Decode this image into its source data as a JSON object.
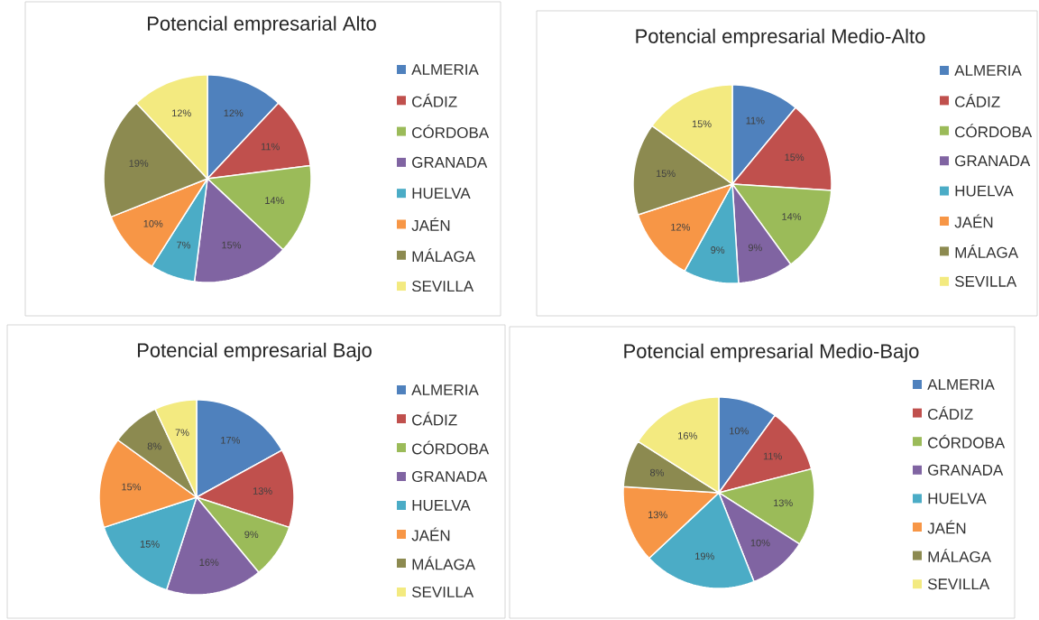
{
  "chart_data": [
    {
      "type": "pie",
      "title": "Potencial empresarial Alto",
      "legend": "right",
      "categories": [
        "ALMERIA",
        "CÁDIZ",
        "CÓRDOBA",
        "GRANADA",
        "HUELVA",
        "JAÉN",
        "MÁLAGA",
        "SEVILLA"
      ],
      "values": [
        12,
        11,
        14,
        15,
        7,
        10,
        19,
        12
      ],
      "value_labels": [
        "12%",
        "11%",
        "14%",
        "15%",
        "7%",
        "10%",
        "19%",
        "12%"
      ],
      "colors": [
        "#4f81bd",
        "#c0504d",
        "#9bbb59",
        "#8064a2",
        "#4bacc6",
        "#f79646",
        "#8c8a50",
        "#f3ea80"
      ]
    },
    {
      "type": "pie",
      "title": "Potencial empresarial Medio-Alto",
      "legend": "right",
      "categories": [
        "ALMERIA",
        "CÁDIZ",
        "CÓRDOBA",
        "GRANADA",
        "HUELVA",
        "JAÉN",
        "MÁLAGA",
        "SEVILLA"
      ],
      "values": [
        11,
        15,
        14,
        9,
        9,
        12,
        15,
        15
      ],
      "value_labels": [
        "11%",
        "15%",
        "14%",
        "9%",
        "9%",
        "12%",
        "15%",
        "15%"
      ],
      "colors": [
        "#4f81bd",
        "#c0504d",
        "#9bbb59",
        "#8064a2",
        "#4bacc6",
        "#f79646",
        "#8c8a50",
        "#f3ea80"
      ]
    },
    {
      "type": "pie",
      "title": "Potencial empresarial Bajo",
      "legend": "right",
      "categories": [
        "ALMERIA",
        "CÁDIZ",
        "CÓRDOBA",
        "GRANADA",
        "HUELVA",
        "JAÉN",
        "MÁLAGA",
        "SEVILLA"
      ],
      "values": [
        17,
        13,
        9,
        16,
        15,
        15,
        8,
        7
      ],
      "value_labels": [
        "17%",
        "13%",
        "9%",
        "16%",
        "15%",
        "15%",
        "8%",
        "7%"
      ],
      "colors": [
        "#4f81bd",
        "#c0504d",
        "#9bbb59",
        "#8064a2",
        "#4bacc6",
        "#f79646",
        "#8c8a50",
        "#f3ea80"
      ]
    },
    {
      "type": "pie",
      "title": "Potencial empresarial Medio-Bajo",
      "legend": "right",
      "categories": [
        "ALMERIA",
        "CÁDIZ",
        "CÓRDOBA",
        "GRANADA",
        "HUELVA",
        "JAÉN",
        "MÁLAGA",
        "SEVILLA"
      ],
      "values": [
        10,
        11,
        13,
        10,
        19,
        13,
        8,
        16
      ],
      "value_labels": [
        "10%",
        "11%",
        "13%",
        "10%",
        "19%",
        "13%",
        "8%",
        "16%"
      ],
      "colors": [
        "#4f81bd",
        "#c0504d",
        "#9bbb59",
        "#8064a2",
        "#4bacc6",
        "#f79646",
        "#8c8a50",
        "#f3ea80"
      ]
    }
  ]
}
